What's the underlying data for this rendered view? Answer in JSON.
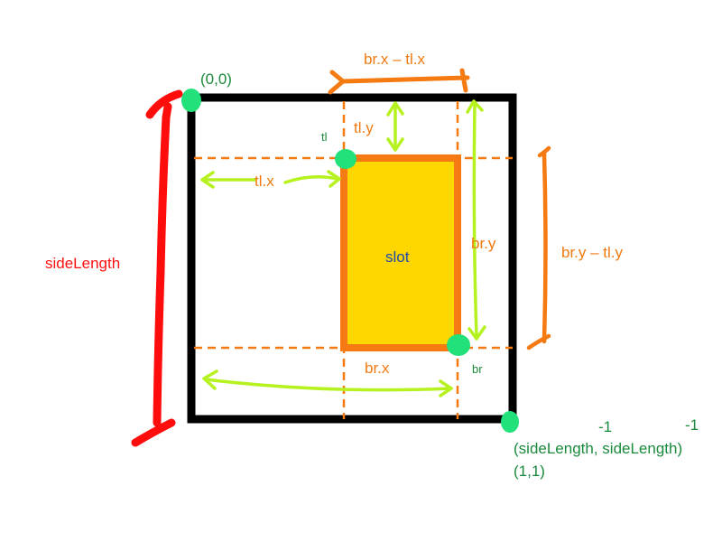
{
  "colors": {
    "outer_square": "#000000",
    "slot_fill": "#ffd700",
    "slot_border": "#f57a12",
    "dashed": "#f57a12",
    "lime_arrow": "#b6f21f",
    "orange_arrow": "#f57a12",
    "red_bracket": "#ff0d0d",
    "corner_dot": "#22e07a",
    "orange_text": "#f07a10",
    "green_text": "#1a8a3c",
    "red_text": "#ff1010",
    "blue_text": "#1f4aa8"
  },
  "labels": {
    "origin": "(0,0)",
    "top_width": "br.x – tl.x",
    "tl_marker": "tl",
    "tl_y": "tl.y",
    "tl_x": "tl.x",
    "slot": "slot",
    "br_y": "br.y",
    "height_diff": "br.y – tl.y",
    "side_length": "sideLength",
    "br_x": "br.x",
    "br_marker": "br",
    "minus_one_a": "-1",
    "minus_one_b": "-1",
    "far_corner": "(sideLength, sideLength)",
    "far_corner_normalized": "(1,1)"
  }
}
